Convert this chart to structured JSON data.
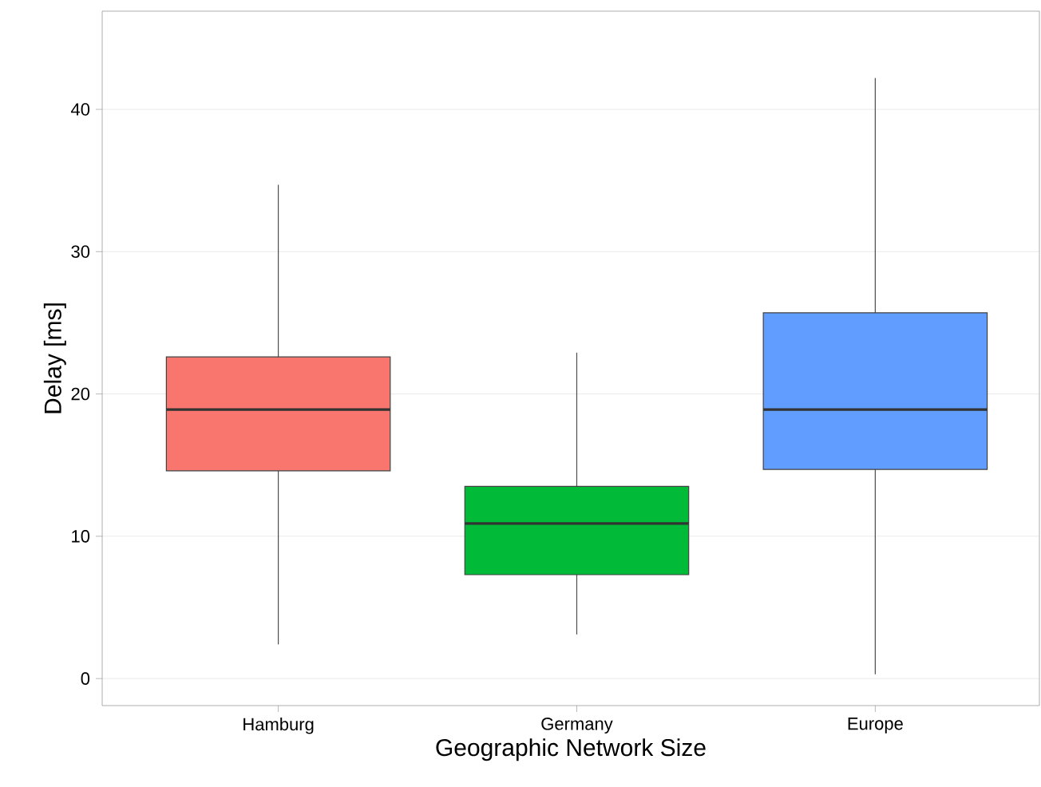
{
  "chart_data": {
    "type": "box",
    "xlabel": "Geographic Network Size",
    "ylabel": "Delay [ms]",
    "categories": [
      "Hamburg",
      "Germany",
      "Europe"
    ],
    "colors": [
      "#f8766d",
      "#00ba38",
      "#619cff"
    ],
    "boxes": [
      {
        "low": 2.4,
        "q1": 14.6,
        "median": 18.9,
        "q3": 22.6,
        "high": 34.7
      },
      {
        "low": 3.1,
        "q1": 7.3,
        "median": 10.9,
        "q3": 13.5,
        "high": 22.9
      },
      {
        "low": 0.3,
        "q1": 14.7,
        "median": 18.9,
        "q3": 25.7,
        "high": 42.2
      }
    ],
    "ylim": [
      -1.9,
      46.9
    ],
    "yticks": [
      0,
      10,
      20,
      30,
      40
    ],
    "grid": "y"
  }
}
